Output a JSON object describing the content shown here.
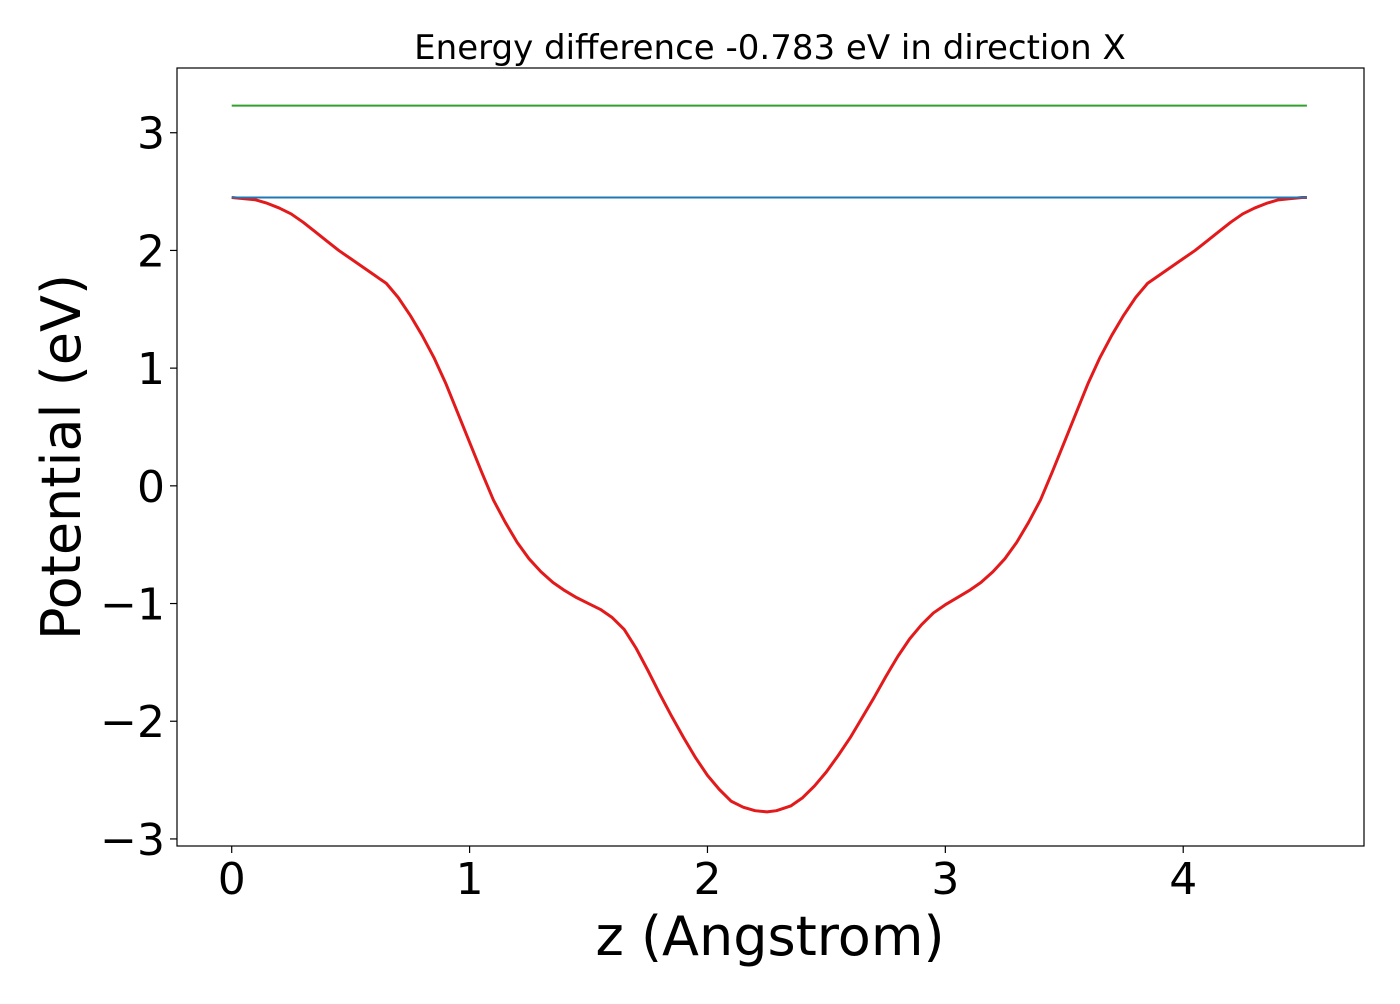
{
  "chart_data": {
    "type": "line",
    "title": "Energy difference -0.783 eV in direction X",
    "xlabel": "z (Angstrom)",
    "ylabel": "Potential (eV)",
    "xlim": [
      -0.23,
      4.76
    ],
    "ylim": [
      -3.06,
      3.55
    ],
    "xticks": [
      0,
      1,
      2,
      3,
      4
    ],
    "yticks": [
      -3,
      -2,
      -1,
      0,
      1,
      2,
      3
    ],
    "grid": false,
    "legend": "none",
    "series": [
      {
        "color": "#e31a1c",
        "x": [
          0,
          0.05,
          0.1,
          0.15,
          0.2,
          0.25,
          0.3,
          0.35,
          0.4,
          0.45,
          0.5,
          0.55,
          0.6,
          0.65,
          0.7,
          0.75,
          0.8,
          0.85,
          0.9,
          0.95,
          1.0,
          1.05,
          1.1,
          1.15,
          1.2,
          1.25,
          1.3,
          1.35,
          1.4,
          1.45,
          1.5,
          1.55,
          1.6,
          1.65,
          1.7,
          1.75,
          1.8,
          1.85,
          1.9,
          1.95,
          2.0,
          2.05,
          2.1,
          2.15,
          2.2,
          2.25,
          2.29,
          2.35,
          2.4,
          2.45,
          2.5,
          2.55,
          2.6,
          2.65,
          2.7,
          2.75,
          2.8,
          2.85,
          2.9,
          2.95,
          3.0,
          3.05,
          3.1,
          3.15,
          3.2,
          3.25,
          3.3,
          3.35,
          3.4,
          3.45,
          3.5,
          3.55,
          3.6,
          3.65,
          3.7,
          3.75,
          3.8,
          3.85,
          3.9,
          3.95,
          4.0,
          4.05,
          4.1,
          4.15,
          4.2,
          4.25,
          4.3,
          4.35,
          4.4,
          4.45,
          4.5,
          4.52
        ],
        "y": [
          2.45,
          2.44,
          2.43,
          2.4,
          2.36,
          2.31,
          2.24,
          2.16,
          2.08,
          2.0,
          1.93,
          1.86,
          1.79,
          1.72,
          1.6,
          1.45,
          1.28,
          1.09,
          0.87,
          0.62,
          0.37,
          0.12,
          -0.12,
          -0.31,
          -0.48,
          -0.62,
          -0.73,
          -0.82,
          -0.89,
          -0.95,
          -1.0,
          -1.05,
          -1.12,
          -1.22,
          -1.38,
          -1.57,
          -1.77,
          -1.96,
          -2.14,
          -2.31,
          -2.46,
          -2.58,
          -2.68,
          -2.73,
          -2.76,
          -2.77,
          -2.76,
          -2.72,
          -2.65,
          -2.55,
          -2.43,
          -2.29,
          -2.14,
          -1.97,
          -1.8,
          -1.62,
          -1.45,
          -1.3,
          -1.18,
          -1.08,
          -1.01,
          -0.95,
          -0.89,
          -0.82,
          -0.73,
          -0.62,
          -0.48,
          -0.31,
          -0.12,
          0.12,
          0.37,
          0.62,
          0.87,
          1.09,
          1.28,
          1.45,
          1.6,
          1.72,
          1.79,
          1.86,
          1.93,
          2.0,
          2.08,
          2.16,
          2.24,
          2.31,
          2.36,
          2.4,
          2.43,
          2.44,
          2.45,
          2.45
        ]
      },
      {
        "color": "#1f78b4",
        "x": [
          0,
          4.52
        ],
        "y": [
          2.45,
          2.45
        ]
      },
      {
        "color": "#33a02c",
        "x": [
          0,
          4.52
        ],
        "y": [
          3.23,
          3.23
        ]
      }
    ]
  }
}
